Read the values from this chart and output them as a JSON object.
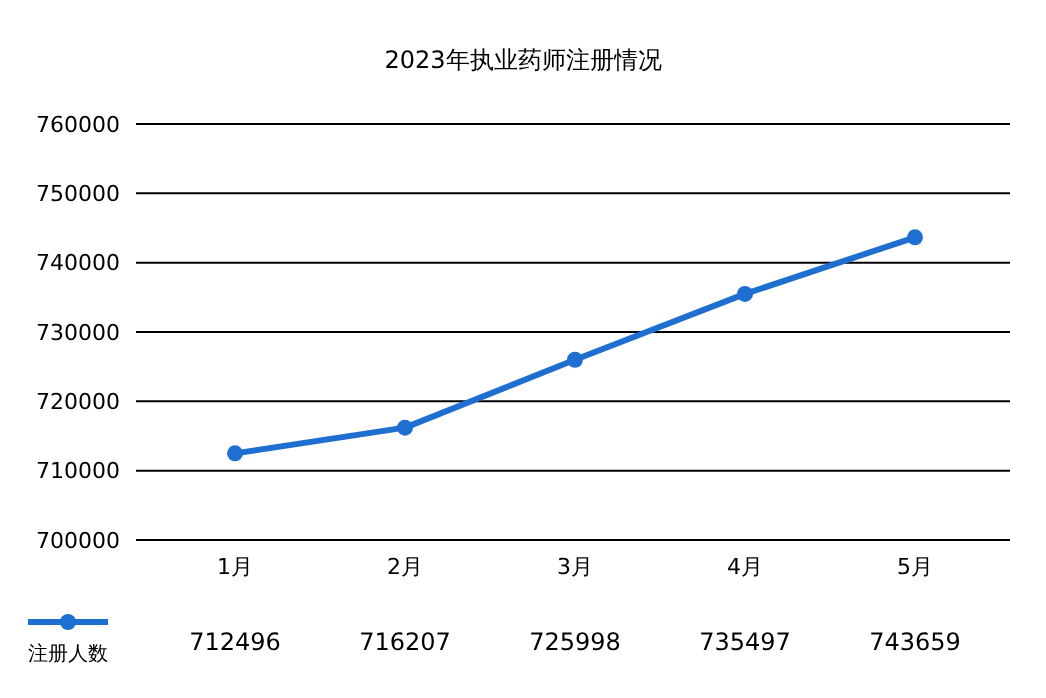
{
  "chart_data": {
    "type": "line",
    "title": "2023年执业药师注册情况",
    "categories": [
      "1月",
      "2月",
      "3月",
      "4月",
      "5月"
    ],
    "series": [
      {
        "name": "注册人数",
        "color": "#1f6fd0",
        "values": [
          712496,
          716207,
          725998,
          735497,
          743659
        ]
      }
    ],
    "ylim": [
      700000,
      760000
    ],
    "yticks": [
      700000,
      710000,
      720000,
      730000,
      740000,
      750000,
      760000
    ],
    "grid": "y",
    "marker": "circle",
    "line_style": "solid",
    "data_labels": true,
    "legend": "bottom left"
  }
}
